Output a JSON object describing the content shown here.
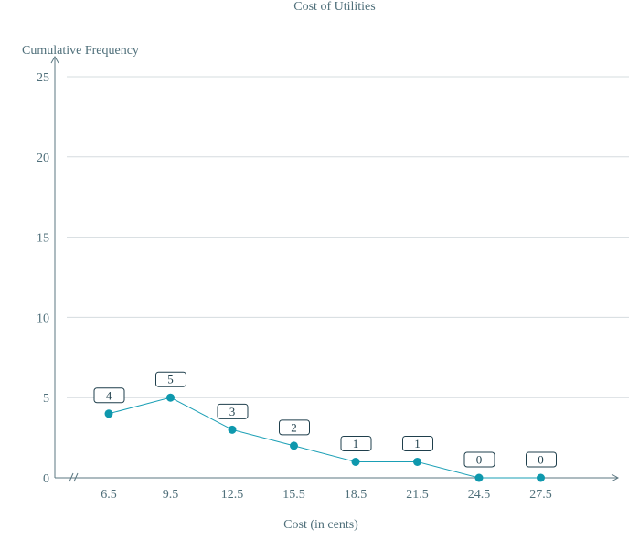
{
  "chart_data": {
    "type": "line",
    "title": "Cost of Utilities",
    "xlabel": "Cost (in cents)",
    "ylabel": "Cumulative Frequency",
    "categories": [
      "6.5",
      "9.5",
      "12.5",
      "15.5",
      "18.5",
      "21.5",
      "24.5",
      "27.5"
    ],
    "values": [
      4,
      5,
      3,
      2,
      1,
      1,
      0,
      0
    ],
    "data_labels": [
      "4",
      "5",
      "3",
      "2",
      "1",
      "1",
      "0",
      "0"
    ],
    "yticks": [
      "0",
      "5",
      "10",
      "15",
      "20",
      "25"
    ],
    "ylim": [
      0,
      25
    ],
    "grid": true,
    "x_axis_break": true,
    "colors": {
      "line": "#1a9fb5",
      "point": "#0e98ad",
      "axis": "#5b7781",
      "grid": "#d5dcdf",
      "label_border": "#1f3f4c"
    }
  }
}
